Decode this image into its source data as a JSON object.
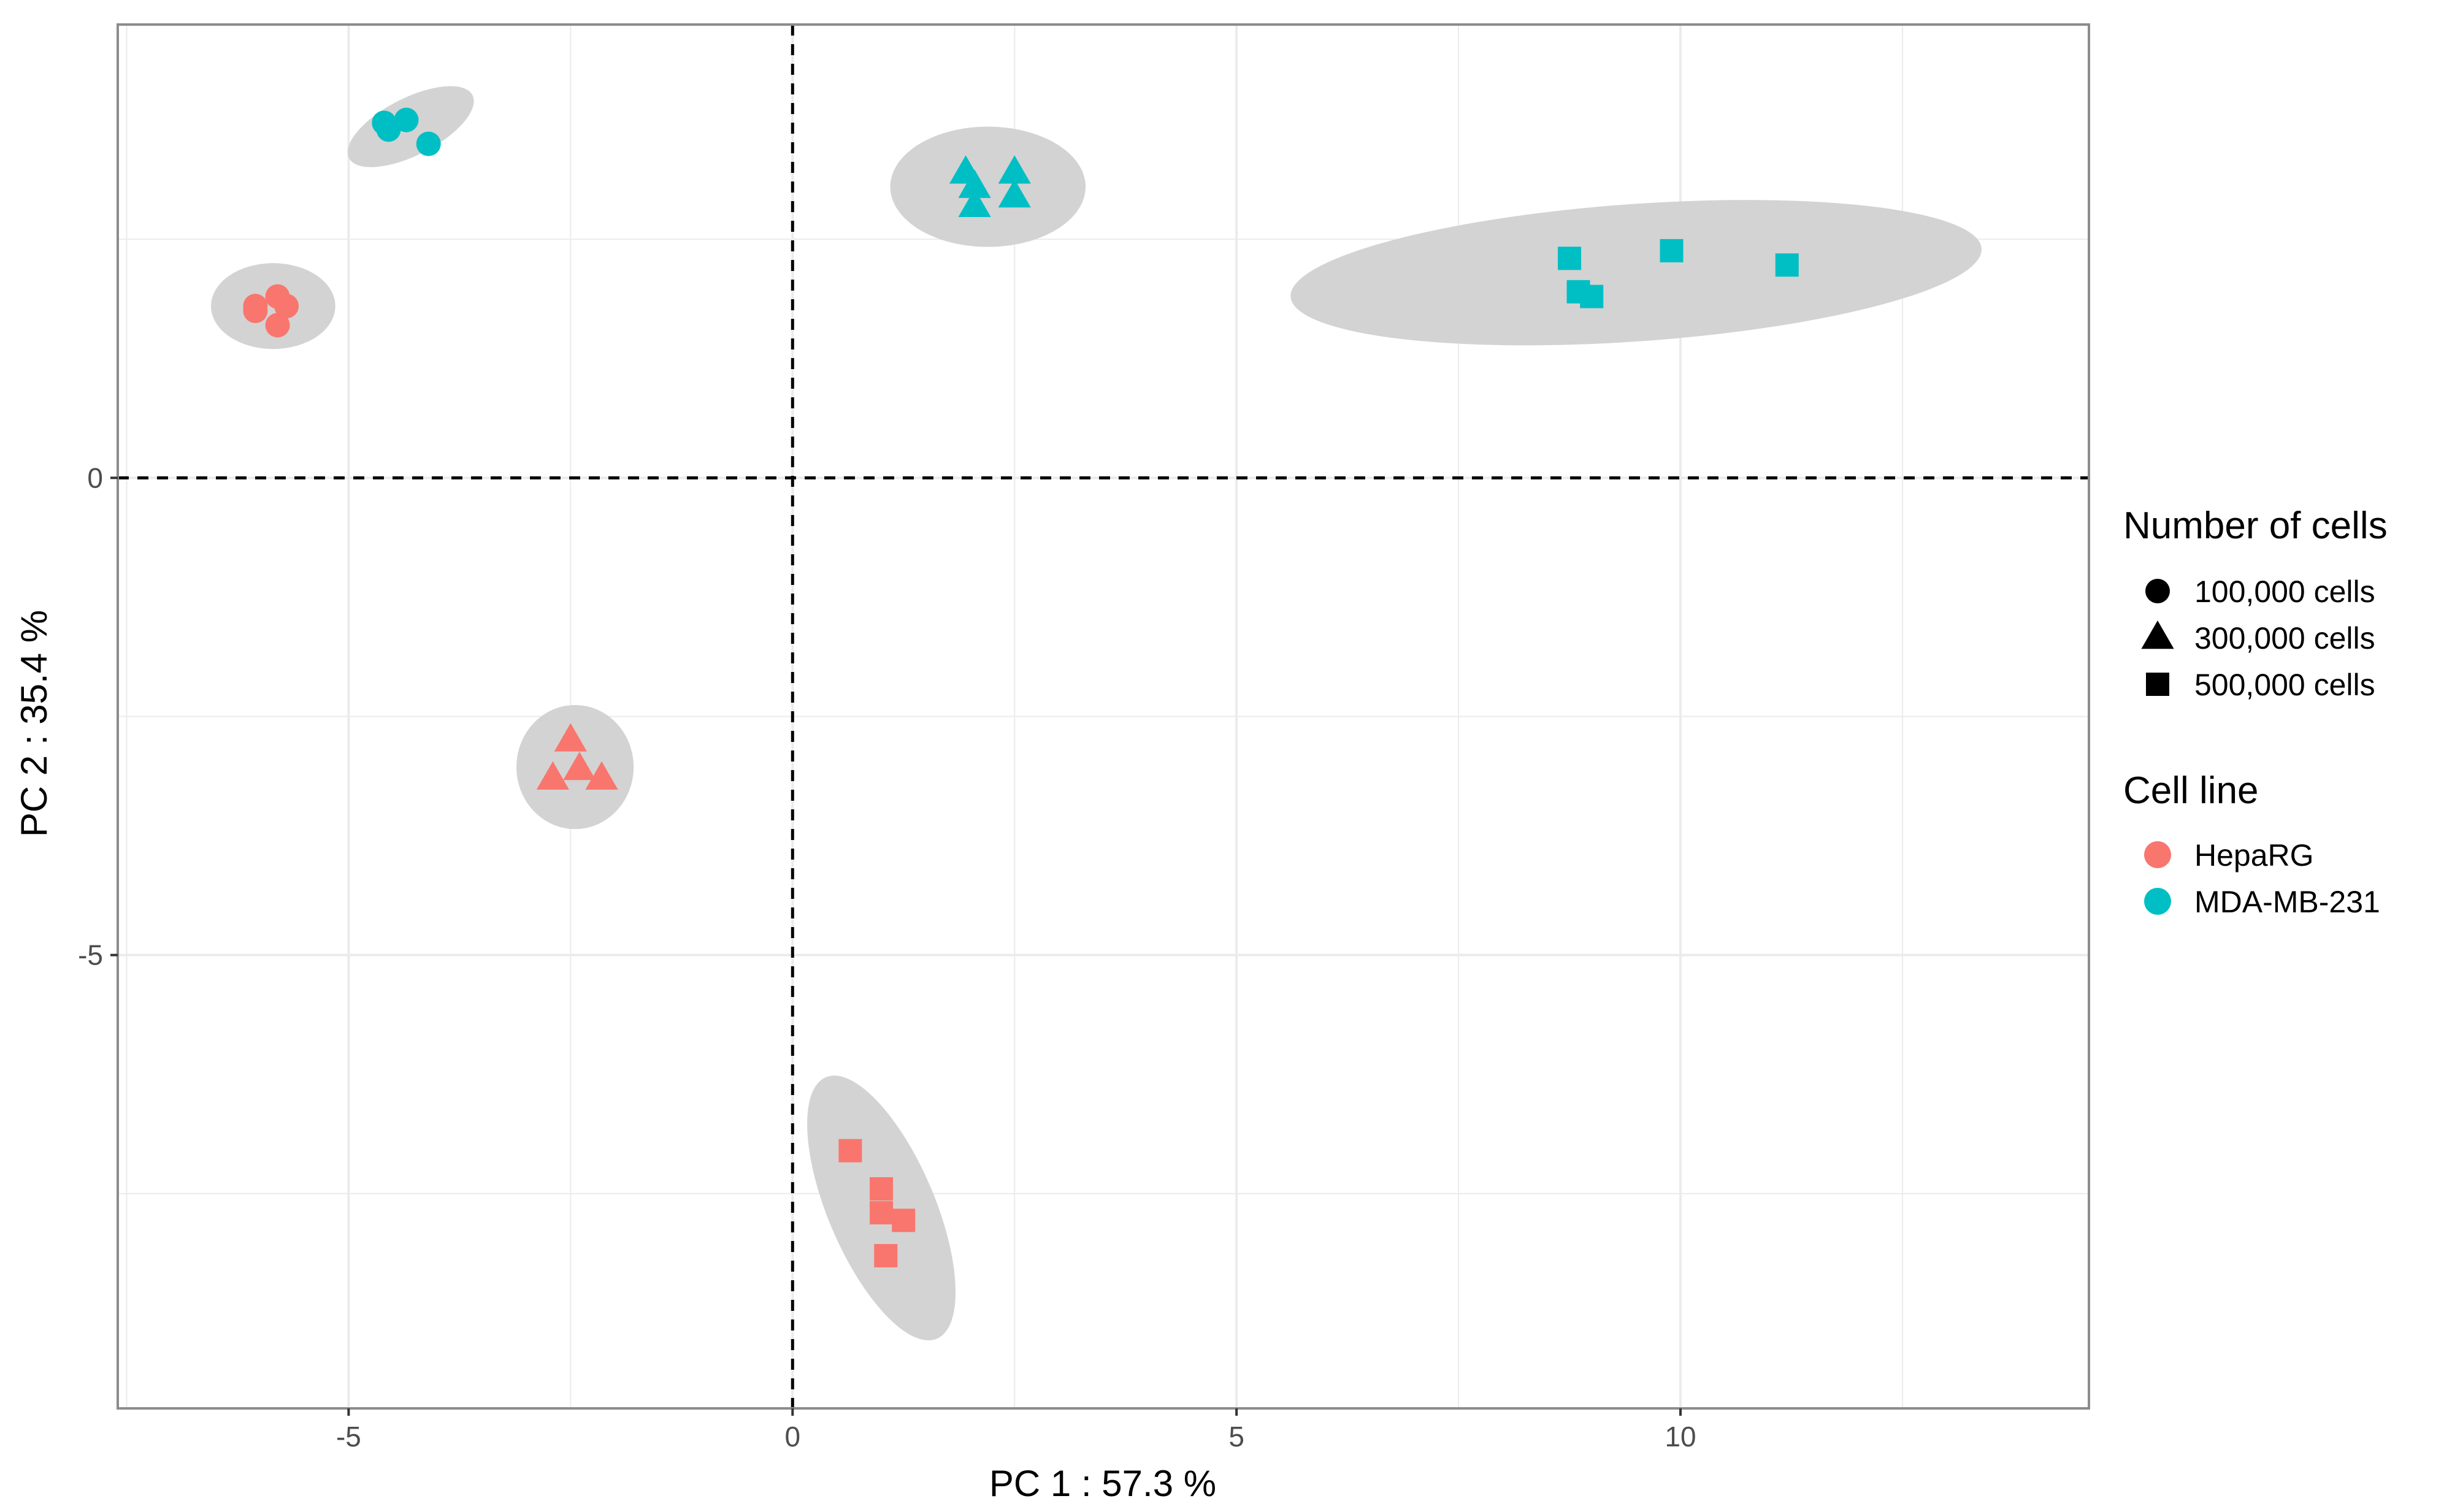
{
  "chart_data": {
    "type": "scatter",
    "title": "",
    "xlabel": "PC 1 : 57.3 %",
    "ylabel": "PC 2 : 35.4 %",
    "xlim": [
      -7.6,
      14.6
    ],
    "ylim": [
      -9.75,
      4.75
    ],
    "x_ticks": [
      -5,
      0,
      5,
      10
    ],
    "y_ticks": [
      -5,
      0
    ],
    "x_tick_labels": [
      "-5",
      "0",
      "5",
      "10"
    ],
    "y_tick_labels": [
      "-5",
      "0"
    ],
    "grid": true,
    "reference_lines": {
      "x": 0,
      "y": 0,
      "style": "dashed"
    },
    "colors": {
      "HepaRG": "#F8766D",
      "MDA-MB-231": "#00BFC4",
      "ellipse": "#d3d3d3",
      "panel_border": "#8c8c8c",
      "grid": "#ebebeb"
    },
    "legend": {
      "position": "right",
      "shape_title": "Number of cells",
      "shape_entries": [
        {
          "label": "100,000 cells",
          "shape": "circle"
        },
        {
          "label": "300,000 cells",
          "shape": "triangle"
        },
        {
          "label": "500,000 cells",
          "shape": "square"
        }
      ],
      "color_title": "Cell line",
      "color_entries": [
        {
          "label": "HepaRG",
          "color": "#F8766D"
        },
        {
          "label": "MDA-MB-231",
          "color": "#00BFC4"
        }
      ]
    },
    "ellipses": [
      {
        "cell_line": "MDA-MB-231",
        "cells": "100,000 cells",
        "center": [
          -4.3,
          3.68
        ],
        "radius_x": 0.78,
        "radius_y": 0.3,
        "angle_deg": -27
      },
      {
        "cell_line": "HepaRG",
        "cells": "100,000 cells",
        "center": [
          -5.85,
          1.8
        ],
        "radius_x": 0.7,
        "radius_y": 0.45,
        "angle_deg": 0
      },
      {
        "cell_line": "MDA-MB-231",
        "cells": "300,000 cells",
        "center": [
          2.2,
          3.05
        ],
        "radius_x": 1.1,
        "radius_y": 0.63,
        "angle_deg": 0
      },
      {
        "cell_line": "MDA-MB-231",
        "cells": "500,000 cells",
        "center": [
          9.5,
          2.15
        ],
        "radius_x": 3.9,
        "radius_y": 0.72,
        "angle_deg": -4
      },
      {
        "cell_line": "HepaRG",
        "cells": "300,000 cells",
        "center": [
          -2.45,
          -3.03
        ],
        "radius_x": 0.66,
        "radius_y": 0.65,
        "angle_deg": 0
      },
      {
        "cell_line": "HepaRG",
        "cells": "500,000 cells",
        "center": [
          1.0,
          -7.65
        ],
        "radius_x": 1.6,
        "radius_y": 0.56,
        "angle_deg": 67
      }
    ],
    "series": [
      {
        "name": "HepaRG / 100,000 cells",
        "cell_line": "HepaRG",
        "shape": "circle",
        "points": [
          [
            -6.05,
            1.8
          ],
          [
            -6.05,
            1.75
          ],
          [
            -5.8,
            1.9
          ],
          [
            -5.7,
            1.8
          ],
          [
            -5.8,
            1.6
          ]
        ]
      },
      {
        "name": "HepaRG / 300,000 cells",
        "cell_line": "HepaRG",
        "shape": "triangle",
        "points": [
          [
            -2.5,
            -2.75
          ],
          [
            -2.4,
            -3.05
          ],
          [
            -2.7,
            -3.15
          ],
          [
            -2.15,
            -3.15
          ]
        ]
      },
      {
        "name": "HepaRG / 500,000 cells",
        "cell_line": "HepaRG",
        "shape": "square",
        "points": [
          [
            0.65,
            -7.05
          ],
          [
            1.0,
            -7.45
          ],
          [
            1.0,
            -7.7
          ],
          [
            1.25,
            -7.78
          ],
          [
            1.05,
            -8.15
          ]
        ]
      },
      {
        "name": "MDA-MB-231 / 100,000 cells",
        "cell_line": "MDA-MB-231",
        "shape": "circle",
        "points": [
          [
            -4.6,
            3.72
          ],
          [
            -4.55,
            3.65
          ],
          [
            -4.35,
            3.75
          ],
          [
            -4.1,
            3.5
          ]
        ]
      },
      {
        "name": "MDA-MB-231 / 300,000 cells",
        "cell_line": "MDA-MB-231",
        "shape": "triangle",
        "points": [
          [
            1.95,
            3.2
          ],
          [
            2.5,
            3.2
          ],
          [
            2.05,
            3.05
          ],
          [
            2.5,
            2.95
          ],
          [
            2.05,
            2.85
          ]
        ]
      },
      {
        "name": "MDA-MB-231 / 500,000 cells",
        "cell_line": "MDA-MB-231",
        "shape": "square",
        "points": [
          [
            8.75,
            2.3
          ],
          [
            9.9,
            2.38
          ],
          [
            11.2,
            2.23
          ],
          [
            8.85,
            1.95
          ],
          [
            9.0,
            1.9
          ]
        ]
      }
    ]
  }
}
